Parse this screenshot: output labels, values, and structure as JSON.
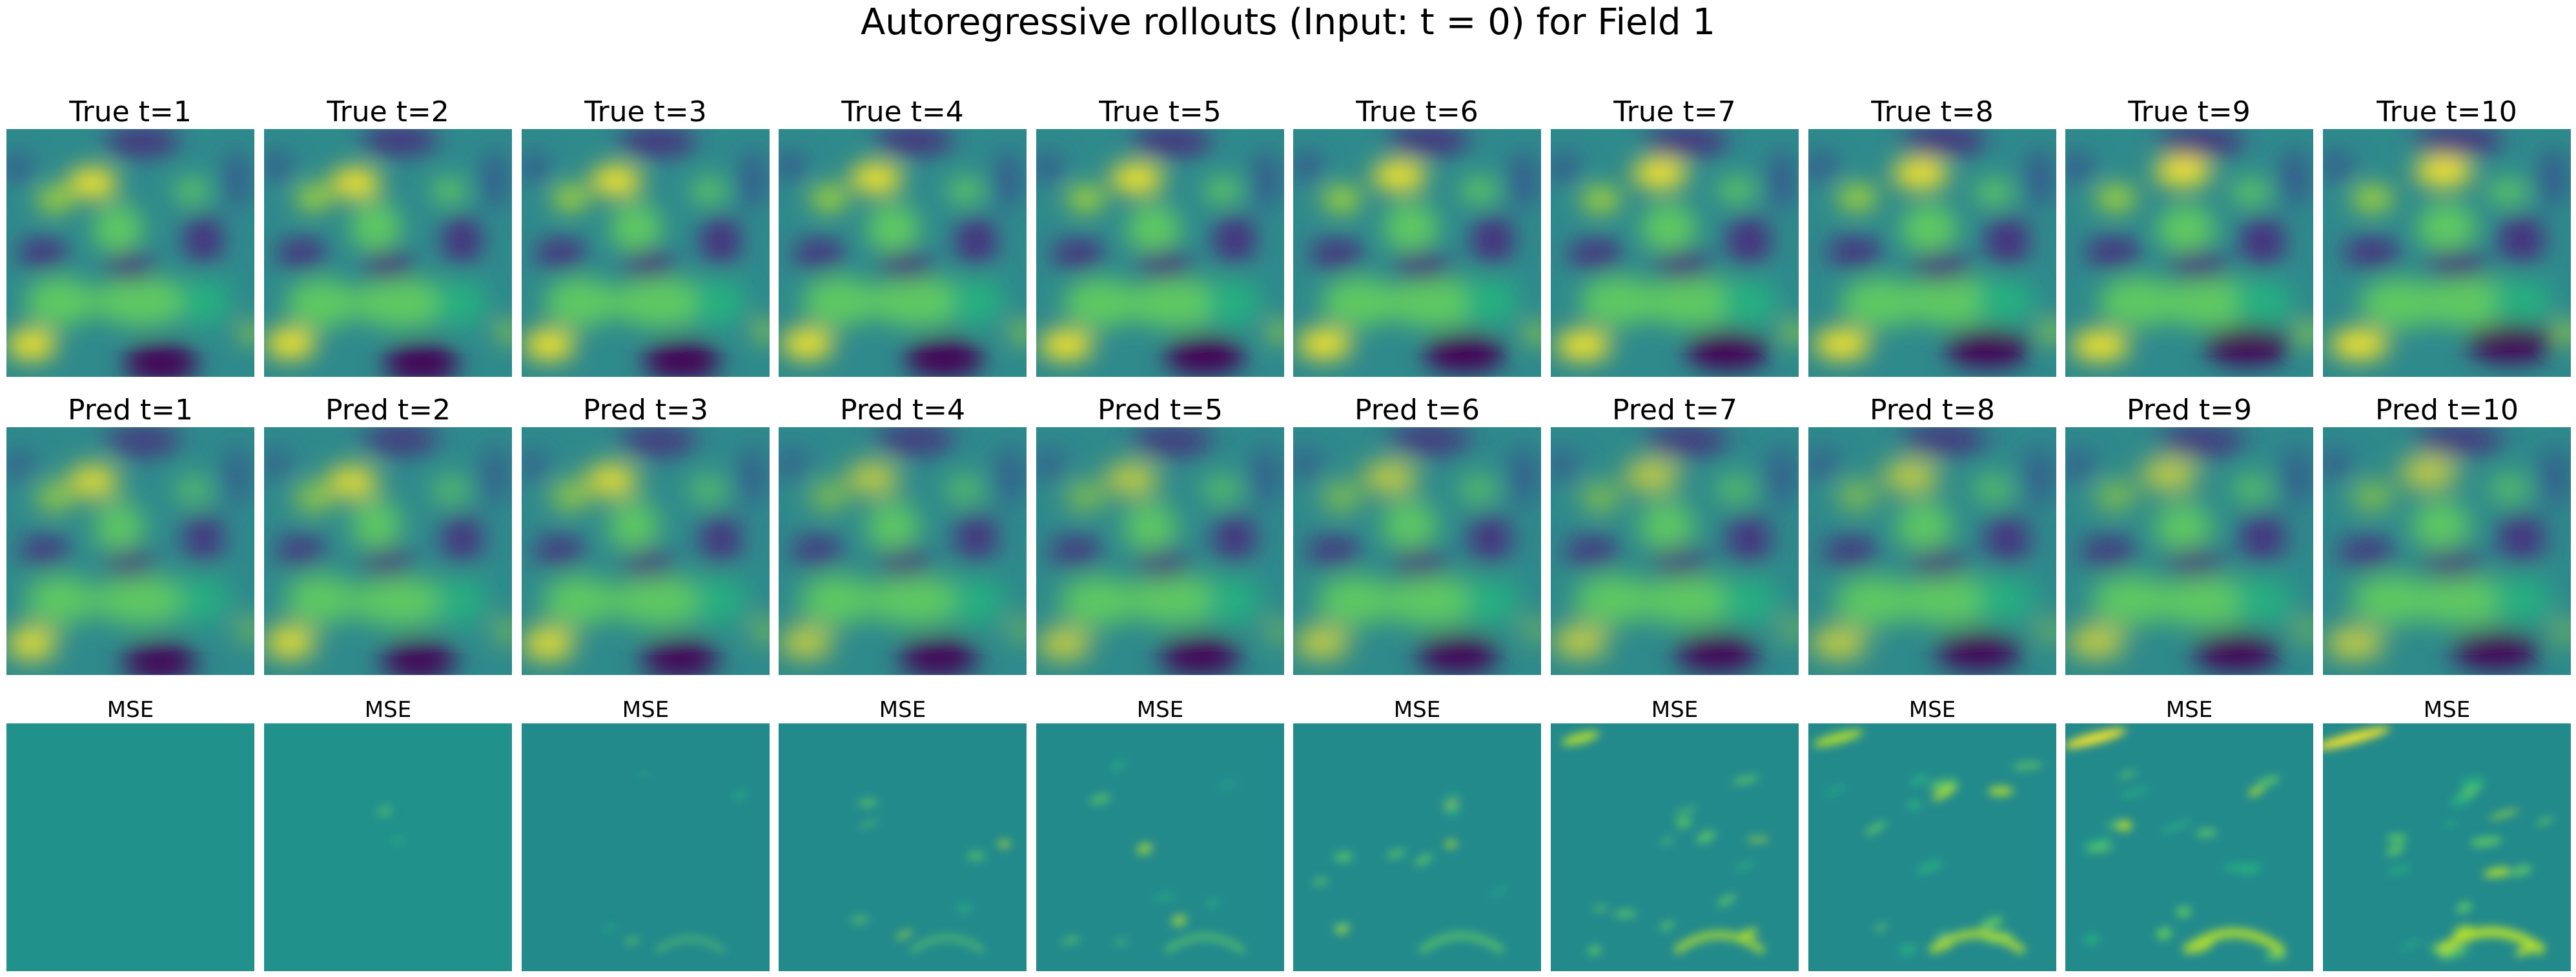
{
  "figure": {
    "suptitle": "Autoregressive rollouts (Input: t = 0) for Field 1",
    "colormap": "viridis",
    "rows": [
      {
        "name": "true",
        "titles": [
          "True t=1",
          "True t=2",
          "True t=3",
          "True t=4",
          "True t=5",
          "True t=6",
          "True t=7",
          "True t=8",
          "True t=9",
          "True t=10"
        ]
      },
      {
        "name": "pred",
        "titles": [
          "Pred t=1",
          "Pred t=2",
          "Pred t=3",
          "Pred t=4",
          "Pred t=5",
          "Pred t=6",
          "Pred t=7",
          "Pred t=8",
          "Pred t=9",
          "Pred t=10"
        ]
      },
      {
        "name": "mse",
        "titles": [
          "MSE",
          "MSE",
          "MSE",
          "MSE",
          "MSE",
          "MSE",
          "MSE",
          "MSE",
          "MSE",
          "MSE"
        ]
      }
    ]
  }
}
